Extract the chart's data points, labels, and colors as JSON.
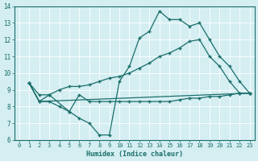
{
  "xlabel": "Humidex (Indice chaleur)",
  "ylabel": "",
  "bg_color": "#d4eef2",
  "grid_color": "#c8e0e4",
  "line_color": "#1a6e6a",
  "xlim": [
    -0.5,
    23.5
  ],
  "ylim": [
    6,
    14
  ],
  "xticks": [
    0,
    1,
    2,
    3,
    4,
    5,
    6,
    7,
    8,
    9,
    10,
    11,
    12,
    13,
    14,
    15,
    16,
    17,
    18,
    19,
    20,
    21,
    22,
    23
  ],
  "yticks": [
    6,
    7,
    8,
    9,
    10,
    11,
    12,
    13,
    14
  ],
  "line1_x": [
    1,
    2,
    3,
    5,
    6,
    7,
    8,
    9,
    10,
    11,
    12,
    13,
    14,
    15,
    16,
    17,
    18,
    19,
    20,
    21,
    22,
    23
  ],
  "line1_y": [
    9.4,
    8.7,
    8.7,
    7.7,
    8.7,
    8.3,
    8.3,
    8.3,
    8.3,
    8.3,
    8.3,
    8.3,
    8.3,
    8.3,
    8.4,
    8.5,
    8.5,
    8.6,
    8.6,
    8.7,
    8.8,
    8.8
  ],
  "line2_x": [
    1,
    2,
    3,
    4,
    5,
    6,
    7,
    8,
    9,
    10,
    11,
    12,
    13,
    14,
    15,
    16,
    17,
    18,
    19,
    20,
    21,
    22,
    23
  ],
  "line2_y": [
    9.4,
    8.3,
    8.3,
    8.0,
    7.7,
    7.3,
    7.0,
    6.3,
    6.3,
    9.5,
    10.4,
    12.1,
    12.5,
    13.7,
    13.2,
    13.2,
    12.8,
    13.0,
    12.0,
    11.0,
    10.4,
    9.5,
    8.8
  ],
  "line3_x": [
    1,
    2,
    3,
    4,
    5,
    6,
    7,
    8,
    9,
    10,
    11,
    12,
    13,
    14,
    15,
    16,
    17,
    18,
    19,
    20,
    21,
    22,
    23
  ],
  "line3_y": [
    9.4,
    8.3,
    8.7,
    9.0,
    9.2,
    9.2,
    9.3,
    9.5,
    9.7,
    9.8,
    10.0,
    10.3,
    10.6,
    11.0,
    11.2,
    11.5,
    11.9,
    12.0,
    11.0,
    10.4,
    9.5,
    8.8,
    8.8
  ],
  "line4_x": [
    1,
    2,
    23
  ],
  "line4_y": [
    9.4,
    8.3,
    8.8
  ]
}
